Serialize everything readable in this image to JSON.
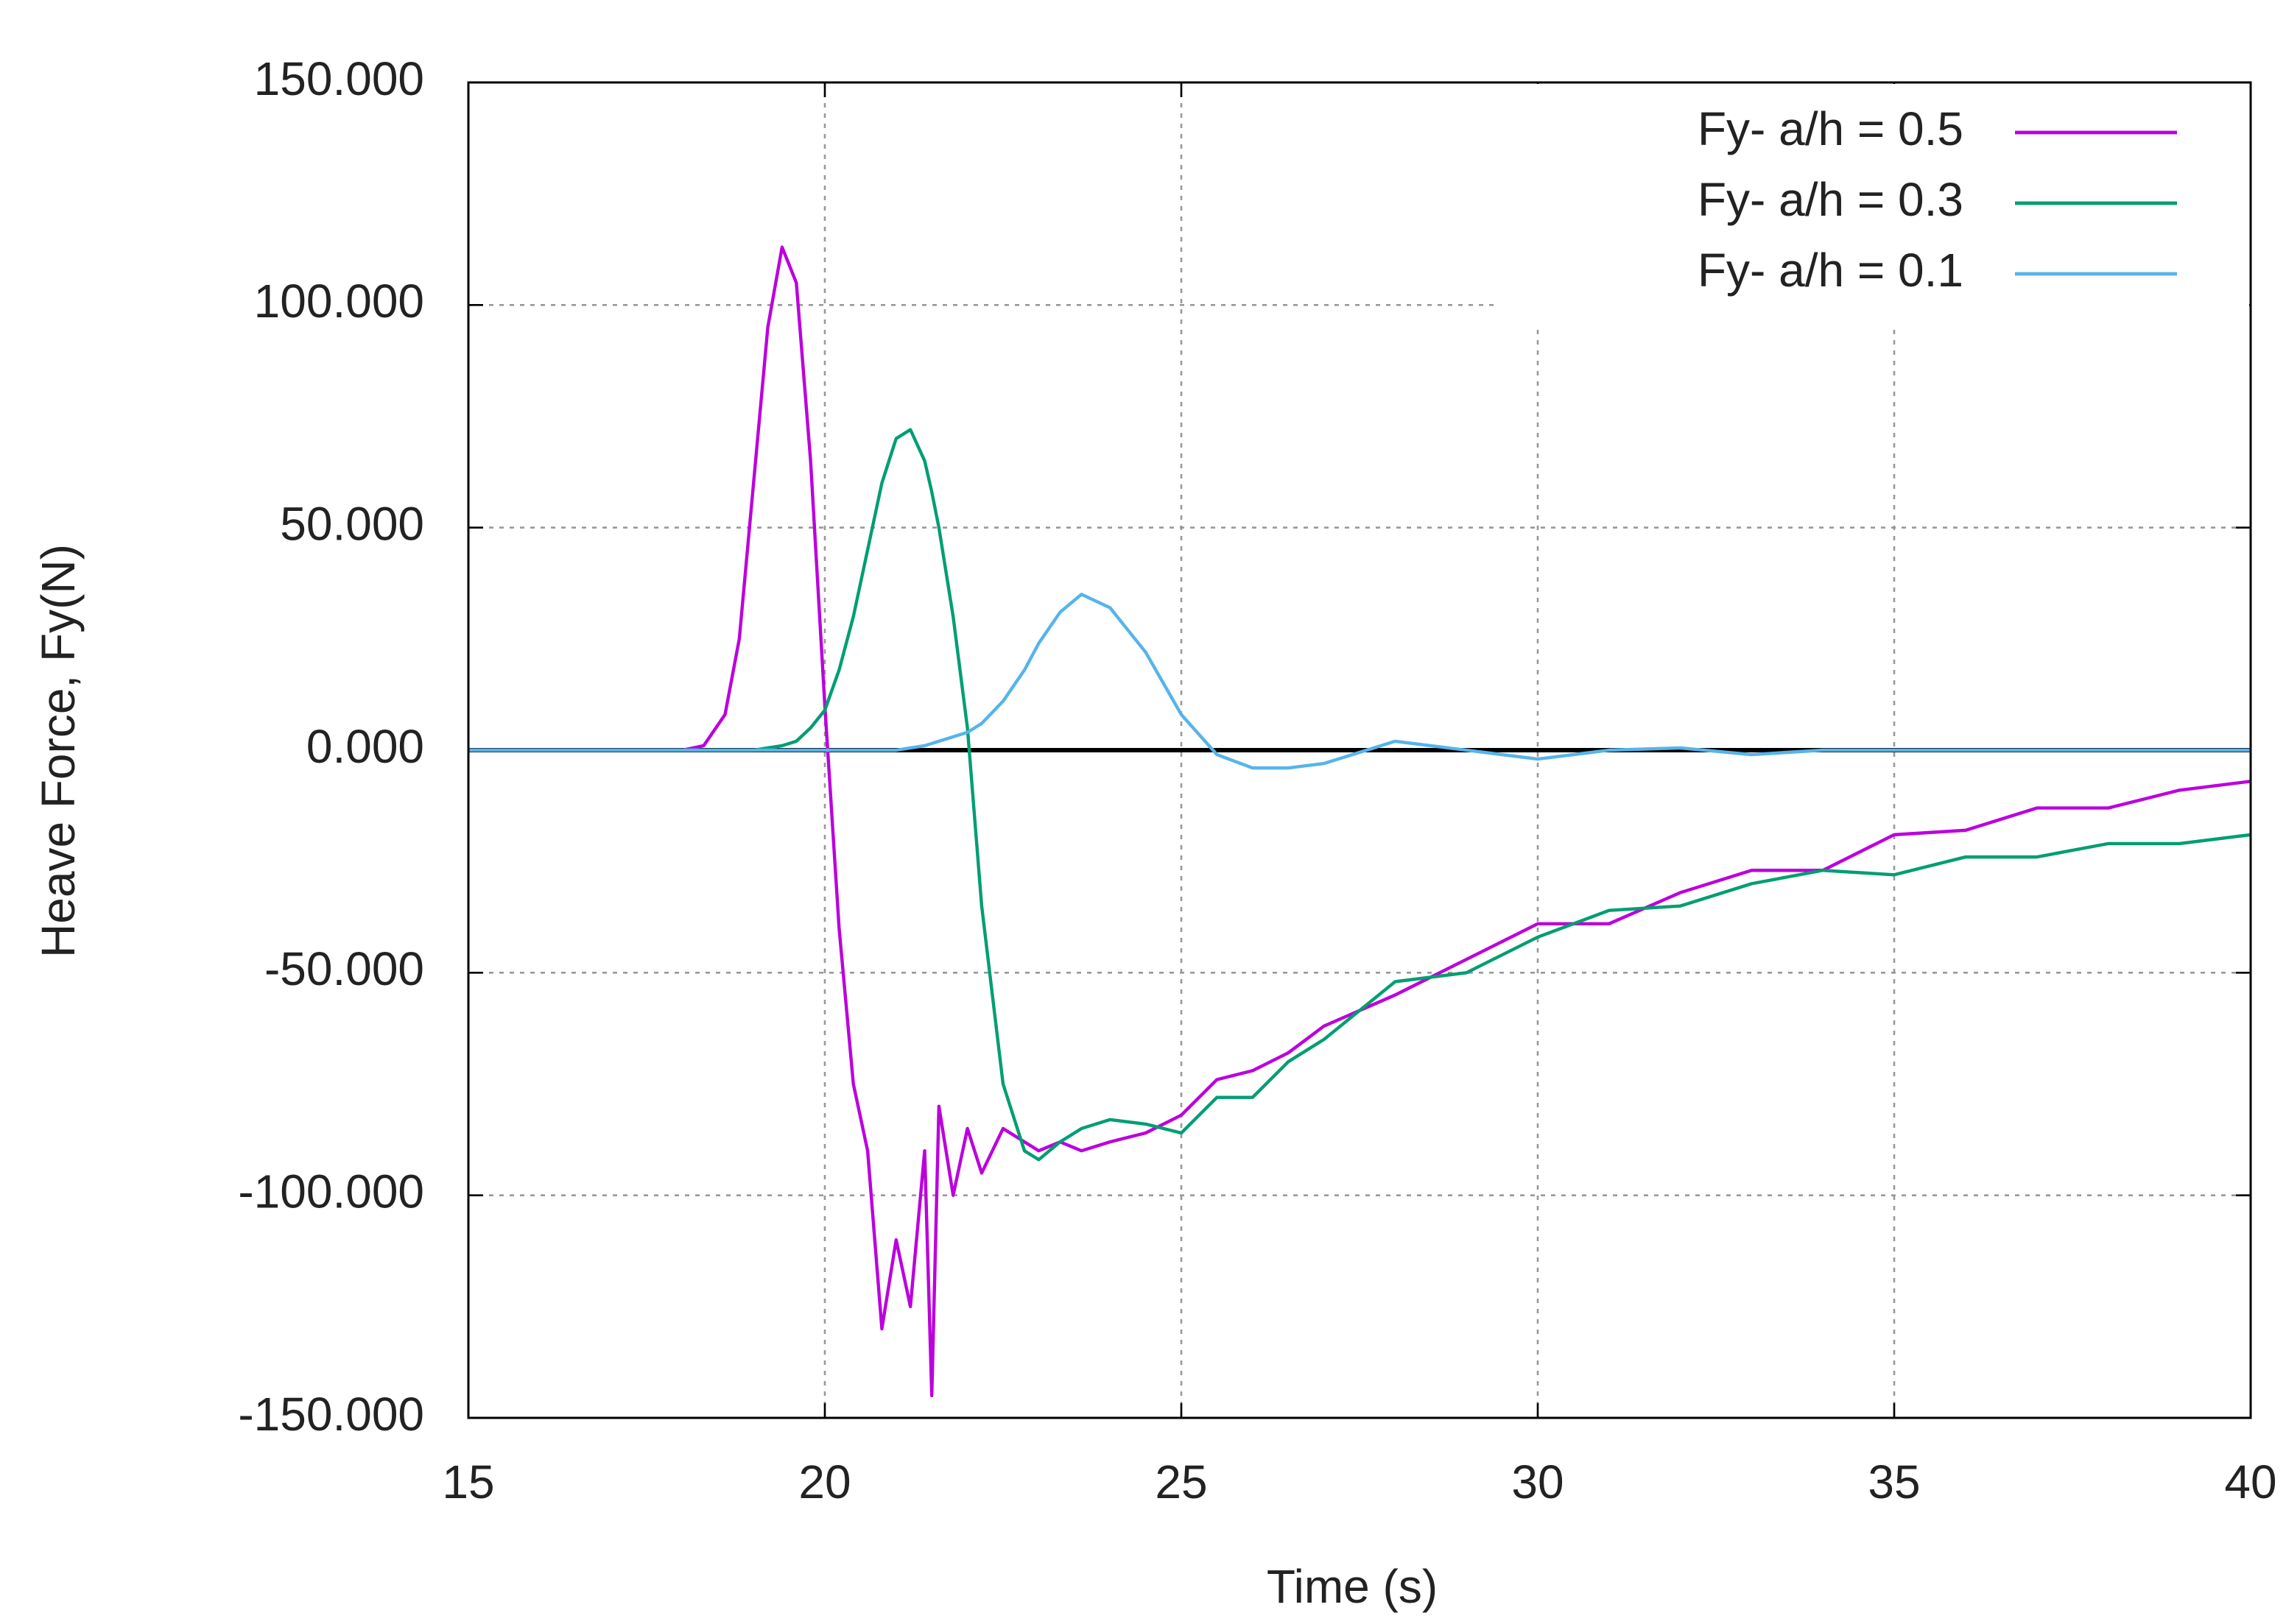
{
  "chart_data": {
    "type": "line",
    "x_label": "Time (s)",
    "y_label": "Heave Force, Fy(N)",
    "x": [
      15,
      17,
      18,
      18.3,
      18.6,
      18.8,
      19,
      19.2,
      19.4,
      19.6,
      19.8,
      20,
      20.2,
      20.4,
      20.6,
      20.8,
      21,
      21.2,
      21.4,
      21.5,
      21.6,
      21.8,
      22,
      22.2,
      22.5,
      22.8,
      23,
      23.3,
      23.6,
      24,
      24.5,
      25,
      25.5,
      26,
      26.5,
      27,
      28,
      29,
      30,
      31,
      32,
      33,
      34,
      35,
      36,
      37,
      38,
      39,
      40
    ],
    "series": [
      {
        "name": "Fy- a/h = 0.5",
        "color": "#bb00dd",
        "values": [
          0,
          0,
          0,
          1,
          8,
          25,
          60,
          95,
          113,
          105,
          65,
          10,
          -40,
          -75,
          -90,
          -130,
          -110,
          -125,
          -90,
          -145,
          -80,
          -100,
          -85,
          -95,
          -85,
          -88,
          -90,
          -88,
          -90,
          -88,
          -86,
          -82,
          -74,
          -72,
          -68,
          -62,
          -55,
          -47,
          -39,
          -39,
          -32,
          -27,
          -27,
          -19,
          -18,
          -13,
          -13,
          -9,
          -7
        ]
      },
      {
        "name": "Fy- a/h = 0.3",
        "color": "#009e73",
        "values": [
          0,
          0,
          0,
          0,
          0,
          0,
          0,
          0.5,
          1,
          2,
          5,
          9,
          18,
          30,
          45,
          60,
          70,
          72,
          65,
          58,
          50,
          30,
          5,
          -35,
          -75,
          -90,
          -92,
          -88,
          -85,
          -83,
          -84,
          -86,
          -78,
          -78,
          -70,
          -65,
          -52,
          -50,
          -42,
          -36,
          -35,
          -30,
          -27,
          -28,
          -24,
          -24,
          -21,
          -21,
          -19
        ]
      },
      {
        "name": "Fy- a/h = 0.1",
        "color": "#56b4e9",
        "values": [
          0,
          0,
          0,
          0,
          0,
          0,
          0,
          0,
          0,
          0,
          0,
          0,
          0,
          0,
          0,
          0,
          0,
          0.5,
          1,
          1.5,
          2,
          3,
          4,
          6,
          11,
          18,
          24,
          31,
          35,
          32,
          22,
          8,
          -1,
          -4,
          -4,
          -3,
          2,
          0,
          -2,
          0,
          0.5,
          -1,
          0,
          0,
          0,
          0,
          0,
          0,
          0
        ]
      }
    ],
    "xlim": [
      15,
      40
    ],
    "xticks": [
      15,
      20,
      25,
      30,
      35,
      40
    ],
    "ylim": [
      -150,
      150
    ],
    "yticks": [
      {
        "value": -150,
        "label": "-150.000"
      },
      {
        "value": -100,
        "label": "-100.000"
      },
      {
        "value": -50,
        "label": "-50.000"
      },
      {
        "value": 0,
        "label": "0.000"
      },
      {
        "value": 50,
        "label": "50.000"
      },
      {
        "value": 100,
        "label": "100.000"
      },
      {
        "value": 150,
        "label": "150.000"
      }
    ],
    "grid": true,
    "zero_line": true,
    "legend": "top-right"
  }
}
